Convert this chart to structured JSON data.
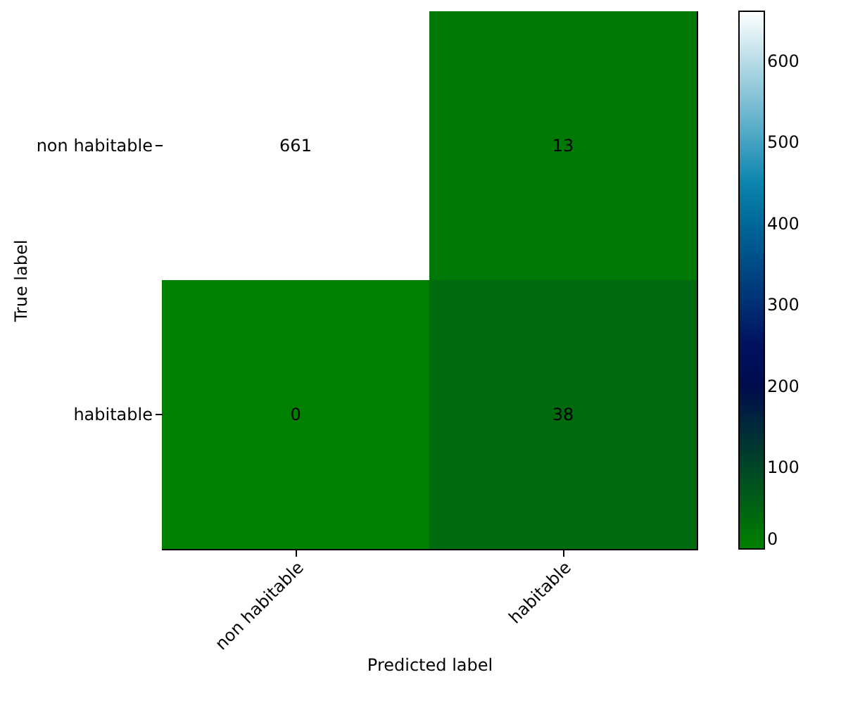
{
  "chart_data": {
    "type": "heatmap",
    "xlabel": "Predicted label",
    "ylabel": "True label",
    "categories": [
      "non habitable",
      "habitable"
    ],
    "y_categories": [
      "non habitable",
      "habitable"
    ],
    "cells": [
      [
        661,
        13
      ],
      [
        0,
        38
      ]
    ],
    "data_labels": true,
    "clim": [
      0,
      661
    ],
    "cticks": [
      0,
      100,
      200,
      300,
      400,
      500,
      600
    ]
  }
}
